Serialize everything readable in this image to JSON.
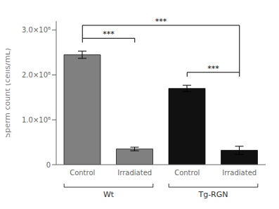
{
  "chart_data": {
    "type": "bar",
    "categories": [
      "Control",
      "Irradiated",
      "Control",
      "Irradiated"
    ],
    "values": [
      245000000.0,
      35000000.0,
      170000000.0,
      32000000.0
    ],
    "errors": [
      8000000.0,
      4000000.0,
      7000000.0,
      9000000.0
    ],
    "colors": [
      "#808080",
      "#808080",
      "#111111",
      "#111111"
    ],
    "ylabel": "Sperm count (cells/mL)",
    "ylim": [
      0,
      320000000.0
    ],
    "yticks": [
      0,
      {
        "value": 100000000.0,
        "label": "1.0×10⁸"
      },
      {
        "value": 200000000.0,
        "label": "2.0×10⁸"
      },
      {
        "value": 300000000.0,
        "label": "3.0×10⁸"
      }
    ],
    "groups": [
      {
        "name": "Wt",
        "categories": [
          0,
          1
        ]
      },
      {
        "name": "Tg-RGN",
        "categories": [
          2,
          3
        ]
      }
    ],
    "annotations": [
      {
        "text": "***",
        "categories": [
          0,
          1
        ]
      },
      {
        "text": "***",
        "categories": [
          2,
          3
        ]
      },
      {
        "text": "***",
        "categories": [
          0,
          3
        ]
      }
    ],
    "grid": false
  }
}
